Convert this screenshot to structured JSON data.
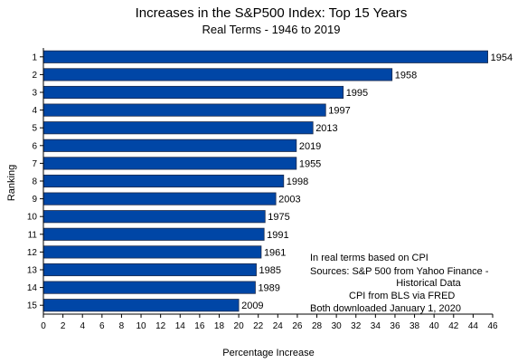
{
  "chart_data": {
    "type": "bar",
    "orientation": "horizontal",
    "title": "Increases in the S&P500 Index:  Top 15 Years",
    "subtitle": "Real Terms - 1946 to 2019",
    "xlabel": "Percentage Increase",
    "ylabel": "Ranking",
    "xlim": [
      0,
      46
    ],
    "x_ticks": [
      0,
      2,
      4,
      6,
      8,
      10,
      12,
      14,
      16,
      18,
      20,
      22,
      24,
      26,
      28,
      30,
      32,
      34,
      36,
      38,
      40,
      42,
      44,
      46
    ],
    "categories": [
      "1",
      "2",
      "3",
      "4",
      "5",
      "6",
      "7",
      "8",
      "9",
      "10",
      "11",
      "12",
      "13",
      "14",
      "15"
    ],
    "values": [
      45.5,
      35.7,
      30.7,
      28.9,
      27.6,
      25.9,
      25.9,
      24.6,
      23.8,
      22.7,
      22.6,
      22.3,
      21.8,
      21.7,
      20.0
    ],
    "data_labels": [
      "1954",
      "1958",
      "1995",
      "1997",
      "2013",
      "2019",
      "1955",
      "1998",
      "2003",
      "1975",
      "1991",
      "1961",
      "1985",
      "1989",
      "2009"
    ],
    "bar_color": "#0046a6",
    "grid": false,
    "legend": "none",
    "annotation": [
      "In real terms based on CPI",
      "Sources:  S&P 500 from Yahoo Finance -",
      "Historical Data",
      "CPI from BLS via FRED",
      "Both downloaded January 1, 2020"
    ]
  }
}
